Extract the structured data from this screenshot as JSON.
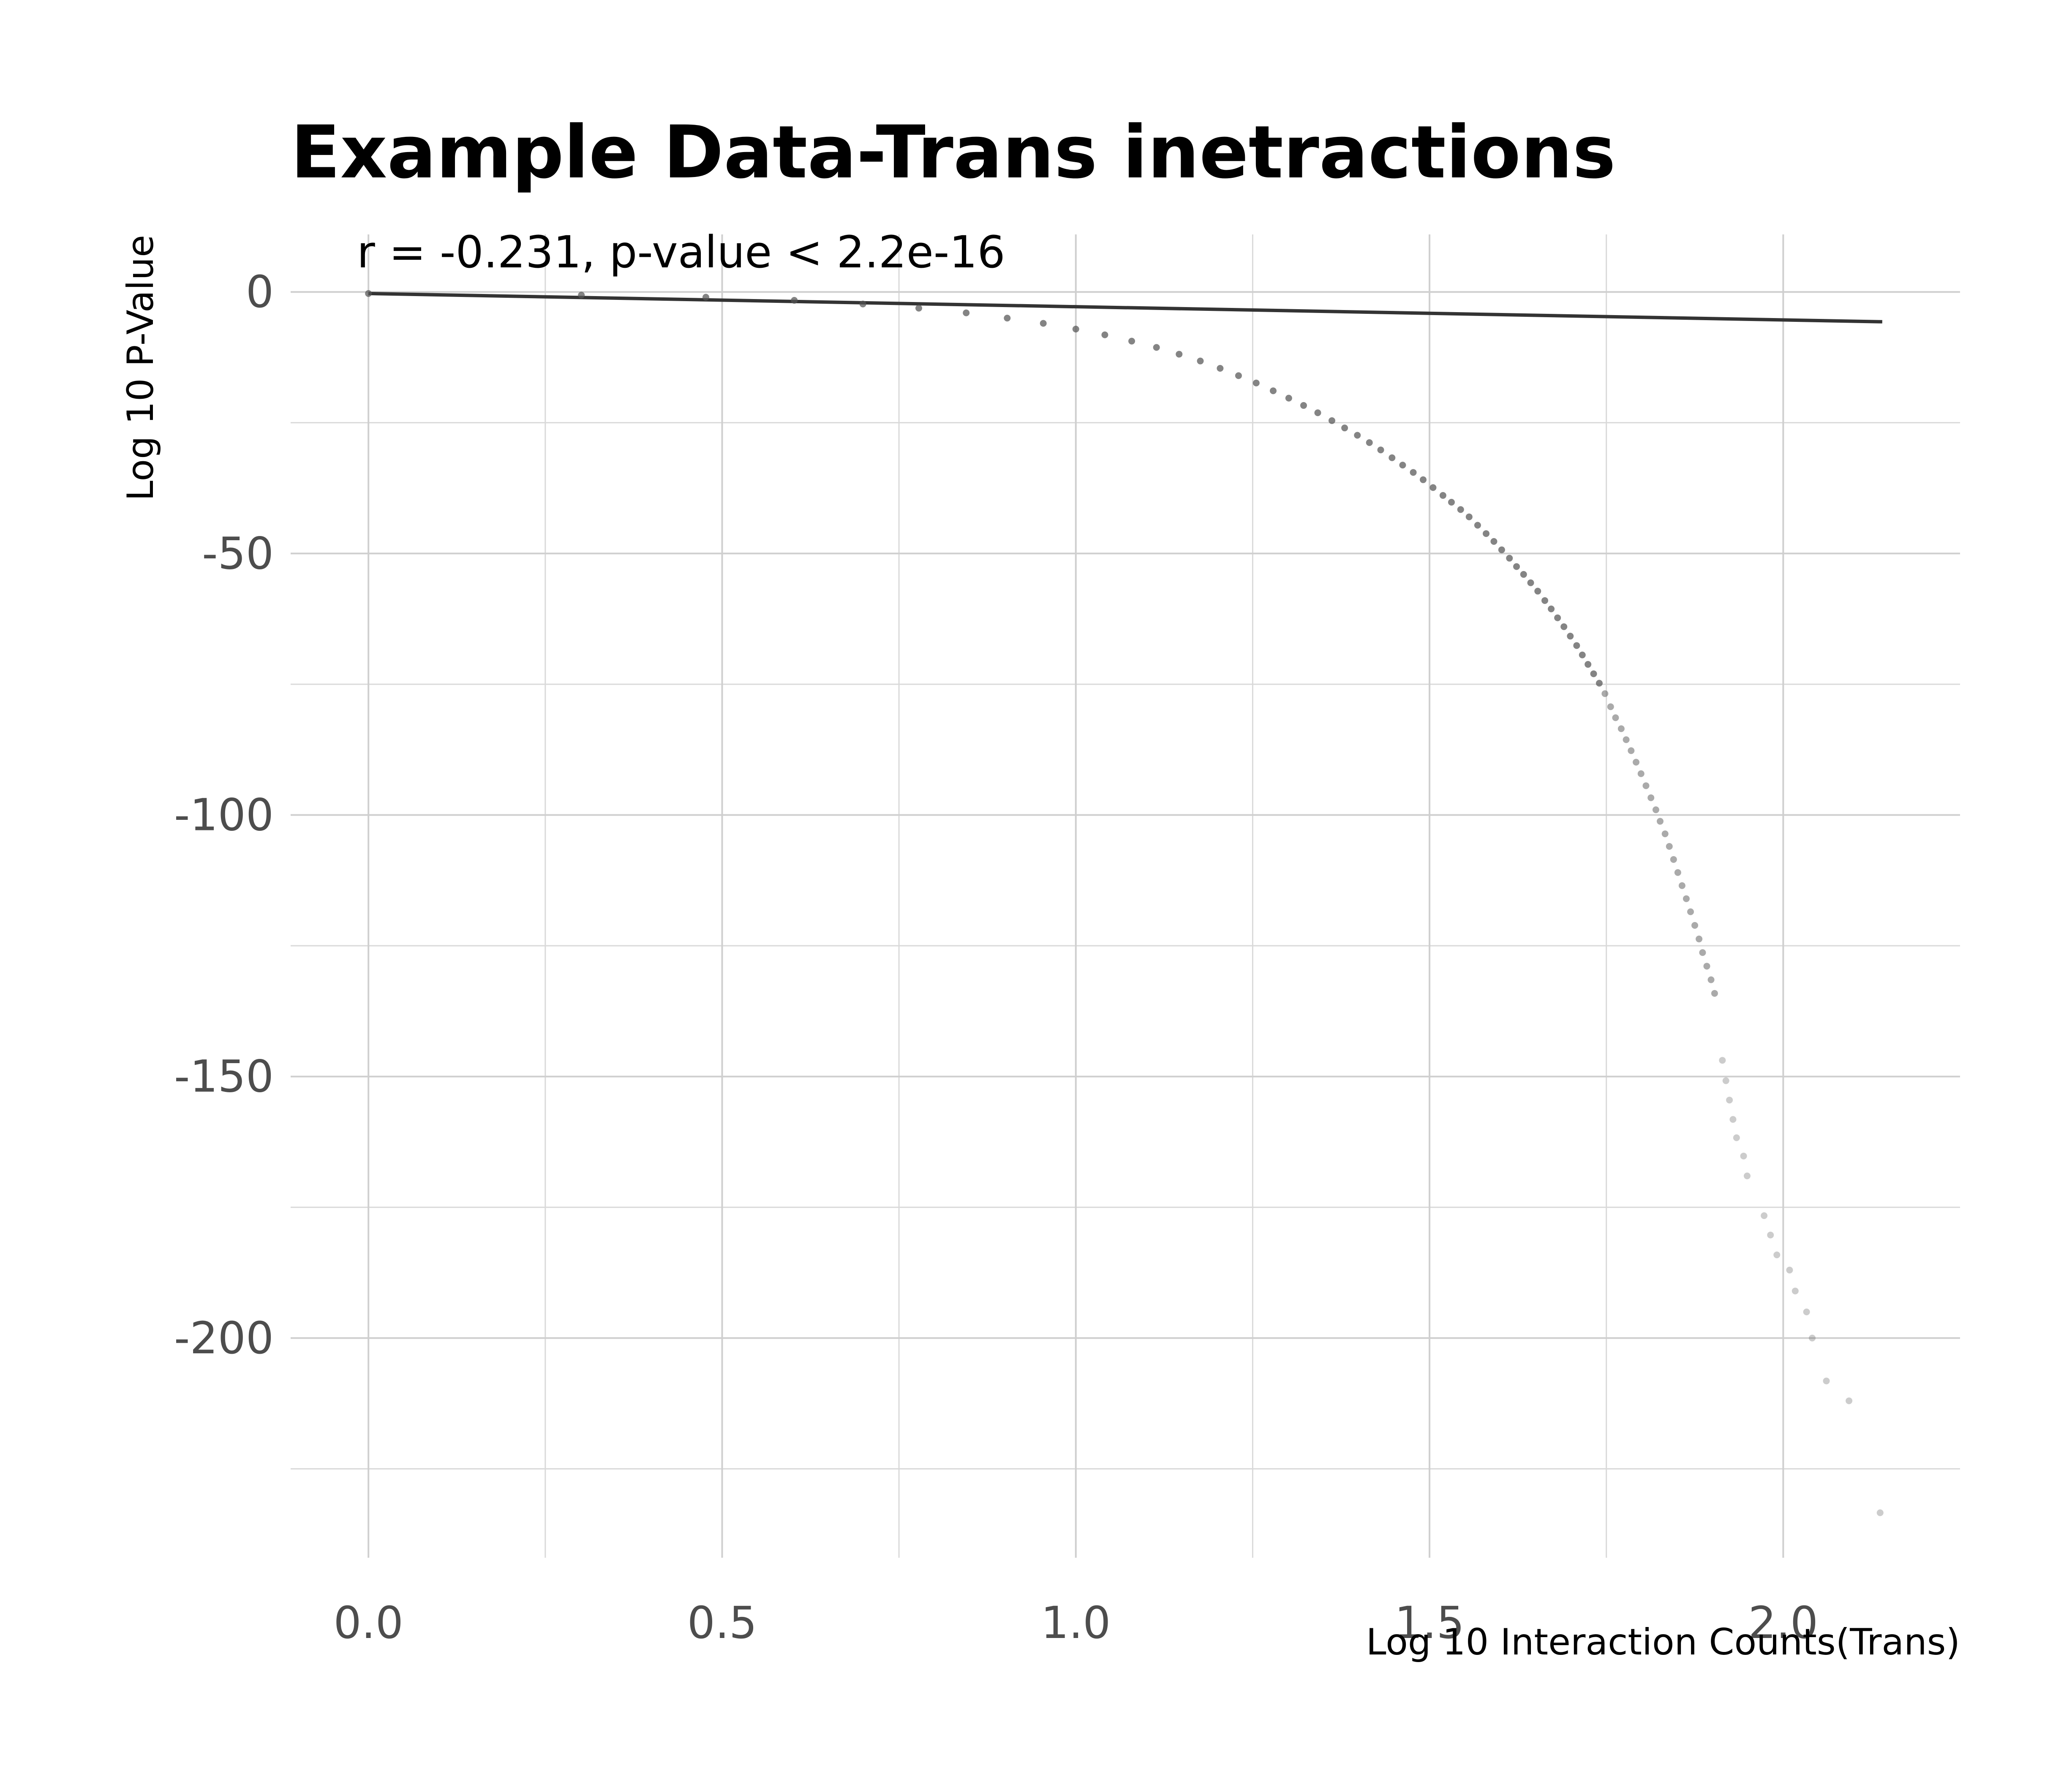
{
  "chart_data": {
    "type": "scatter",
    "title": "Example Data-Trans inetractions",
    "xlabel": "Log 10 Interaction Counts(Trans)",
    "ylabel": "Log 10 P-Value",
    "annotation": "r = -0.231, p-value < 2.2e-16",
    "xlim": [
      -0.11,
      2.25
    ],
    "ylim": [
      -242,
      11
    ],
    "x_ticks": [
      0.0,
      0.5,
      1.0,
      1.5,
      2.0
    ],
    "x_tick_labels": [
      "0.0",
      "0.5",
      "1.0",
      "1.5",
      "2.0"
    ],
    "x_minor_ticks": [
      0.25,
      0.75,
      1.25,
      1.75
    ],
    "y_ticks": [
      0,
      -50,
      -100,
      -150,
      -200
    ],
    "y_tick_labels": [
      "0",
      "-50",
      "-100",
      "-150",
      "-200"
    ],
    "y_minor_ticks": [
      -25,
      -75,
      -125,
      -175,
      -225
    ],
    "grid": true,
    "legend": "none",
    "point_color": "#555555",
    "line_color": "#333333",
    "regression_line": {
      "x": [
        0.0,
        2.14
      ],
      "y": [
        -0.3,
        -5.7
      ]
    },
    "x": [
      0.0,
      0.301,
      0.477,
      0.602,
      0.699,
      0.778,
      0.845,
      0.903,
      0.954,
      1.0,
      1.041,
      1.079,
      1.114,
      1.146,
      1.176,
      1.204,
      1.23,
      1.255,
      1.279,
      1.301,
      1.322,
      1.342,
      1.362,
      1.38,
      1.398,
      1.415,
      1.431,
      1.447,
      1.462,
      1.477,
      1.491,
      1.505,
      1.519,
      1.531,
      1.544,
      1.556,
      1.568,
      1.58,
      1.591,
      1.602,
      1.613,
      1.623,
      1.633,
      1.643,
      1.653,
      1.663,
      1.672,
      1.681,
      1.69,
      1.699,
      1.708,
      1.716,
      1.724,
      1.732,
      1.74,
      1.748,
      1.756,
      1.763,
      1.771,
      1.778,
      1.785,
      1.792,
      1.799,
      1.806,
      1.813,
      1.82,
      1.826,
      1.833,
      1.839,
      1.845,
      1.851,
      1.857,
      1.863,
      1.869,
      1.875,
      1.881,
      1.886,
      1.892,
      1.898,
      1.903,
      1.914,
      1.919,
      1.924,
      1.929,
      1.934,
      1.944,
      1.949,
      1.973,
      1.982,
      1.991,
      2.009,
      2.017,
      2.033,
      2.041,
      2.061,
      2.093,
      2.137
    ],
    "y": [
      -0.3,
      -0.6,
      -1.0,
      -1.6,
      -2.3,
      -3.1,
      -4.0,
      -5.0,
      -6.0,
      -7.1,
      -8.2,
      -9.4,
      -10.6,
      -11.9,
      -13.2,
      -14.6,
      -16.0,
      -17.4,
      -18.9,
      -20.3,
      -21.7,
      -23.1,
      -24.6,
      -26.0,
      -27.4,
      -28.8,
      -30.2,
      -31.7,
      -33.1,
      -34.5,
      -35.9,
      -37.4,
      -38.9,
      -40.2,
      -41.6,
      -43.0,
      -44.6,
      -46.2,
      -47.7,
      -49.3,
      -50.9,
      -52.5,
      -54.0,
      -55.6,
      -57.2,
      -59.0,
      -60.6,
      -62.3,
      -64.0,
      -65.8,
      -67.6,
      -69.4,
      -71.2,
      -73.0,
      -74.8,
      -76.8,
      -79.3,
      -81.4,
      -83.5,
      -85.6,
      -87.7,
      -89.9,
      -92.1,
      -94.4,
      -96.7,
      -99.0,
      -101.2,
      -103.6,
      -106.0,
      -108.5,
      -111.0,
      -113.5,
      -116.0,
      -118.5,
      -121.1,
      -123.7,
      -126.3,
      -128.9,
      -131.5,
      -134.1,
      -146.9,
      -150.8,
      -154.5,
      -158.2,
      -161.7,
      -165.2,
      -169.0,
      -176.6,
      -180.3,
      -184.1,
      -187.0,
      -191.0,
      -195.0,
      -200.0,
      -208.2,
      -212.0,
      -233.4
    ]
  }
}
